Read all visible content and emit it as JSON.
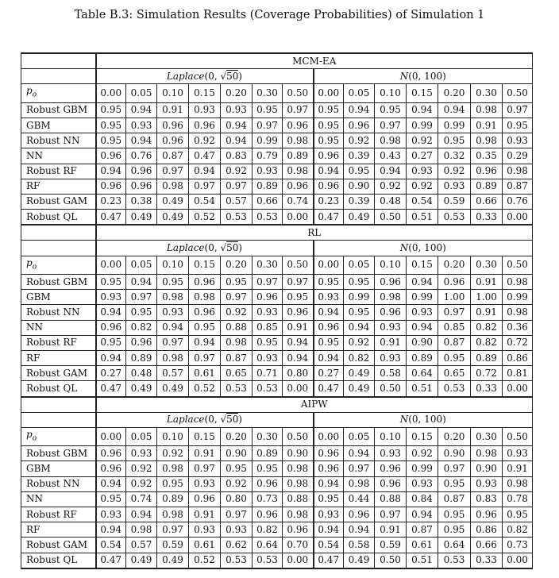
{
  "caption": "Table B.3: Simulation Results (Coverage Probabilities) of Simulation 1",
  "distributions": [
    {
      "name": "Laplace",
      "args_prefix": "(0, ",
      "sqrt_arg": "50",
      "suffix": ")"
    },
    {
      "name": "N",
      "args_prefix": "(0, 100)",
      "sqrt_arg": "",
      "suffix": ""
    }
  ],
  "p_label": "p",
  "p_sub": "o",
  "p_values": [
    "0.00",
    "0.05",
    "0.10",
    "0.15",
    "0.20",
    "0.30",
    "0.50"
  ],
  "blocks": [
    {
      "method": "MCM-EA",
      "rows": [
        {
          "label": "Robust GBM",
          "values": [
            "0.95",
            "0.94",
            "0.91",
            "0.93",
            "0.93",
            "0.95",
            "0.97",
            "0.95",
            "0.94",
            "0.95",
            "0.94",
            "0.94",
            "0.98",
            "0.97"
          ]
        },
        {
          "label": "GBM",
          "values": [
            "0.95",
            "0.93",
            "0.96",
            "0.96",
            "0.94",
            "0.97",
            "0.96",
            "0.95",
            "0.96",
            "0.97",
            "0.99",
            "0.99",
            "0.91",
            "0.95"
          ]
        },
        {
          "label": "Robust NN",
          "values": [
            "0.95",
            "0.94",
            "0.96",
            "0.92",
            "0.94",
            "0.99",
            "0.98",
            "0.95",
            "0.92",
            "0.98",
            "0.92",
            "0.95",
            "0.98",
            "0.93"
          ]
        },
        {
          "label": "NN",
          "values": [
            "0.96",
            "0.76",
            "0.87",
            "0.47",
            "0.83",
            "0.79",
            "0.89",
            "0.96",
            "0.39",
            "0.43",
            "0.27",
            "0.32",
            "0.35",
            "0.29"
          ]
        },
        {
          "label": "Robust RF",
          "values": [
            "0.94",
            "0.96",
            "0.97",
            "0.94",
            "0.92",
            "0.93",
            "0.98",
            "0.94",
            "0.95",
            "0.94",
            "0.93",
            "0.92",
            "0.96",
            "0.98"
          ]
        },
        {
          "label": "RF",
          "values": [
            "0.96",
            "0.96",
            "0.98",
            "0.97",
            "0.97",
            "0.89",
            "0.96",
            "0.96",
            "0.90",
            "0.92",
            "0.92",
            "0.93",
            "0.89",
            "0.87"
          ]
        },
        {
          "label": "Robust GAM",
          "values": [
            "0.23",
            "0.38",
            "0.49",
            "0.54",
            "0.57",
            "0.66",
            "0.74",
            "0.23",
            "0.39",
            "0.48",
            "0.54",
            "0.59",
            "0.66",
            "0.76"
          ]
        },
        {
          "label": "Robust QL",
          "values": [
            "0.47",
            "0.49",
            "0.49",
            "0.52",
            "0.53",
            "0.53",
            "0.00",
            "0.47",
            "0.49",
            "0.50",
            "0.51",
            "0.53",
            "0.33",
            "0.00"
          ]
        }
      ]
    },
    {
      "method": "RL",
      "rows": [
        {
          "label": "Robust GBM",
          "values": [
            "0.95",
            "0.94",
            "0.95",
            "0.96",
            "0.95",
            "0.97",
            "0.97",
            "0.95",
            "0.95",
            "0.96",
            "0.94",
            "0.96",
            "0.91",
            "0.98"
          ]
        },
        {
          "label": "GBM",
          "values": [
            "0.93",
            "0.97",
            "0.98",
            "0.98",
            "0.97",
            "0.96",
            "0.95",
            "0.93",
            "0.99",
            "0.98",
            "0.99",
            "1.00",
            "1.00",
            "0.99"
          ]
        },
        {
          "label": "Robust NN",
          "values": [
            "0.94",
            "0.95",
            "0.93",
            "0.96",
            "0.92",
            "0.93",
            "0.96",
            "0.94",
            "0.95",
            "0.96",
            "0.93",
            "0.97",
            "0.91",
            "0.98"
          ]
        },
        {
          "label": "NN",
          "values": [
            "0.96",
            "0.82",
            "0.94",
            "0.95",
            "0.88",
            "0.85",
            "0.91",
            "0.96",
            "0.94",
            "0.93",
            "0.94",
            "0.85",
            "0.82",
            "0.36"
          ]
        },
        {
          "label": "Robust RF",
          "values": [
            "0.95",
            "0.96",
            "0.97",
            "0.94",
            "0.98",
            "0.95",
            "0.94",
            "0.95",
            "0.92",
            "0.91",
            "0.90",
            "0.87",
            "0.82",
            "0.72"
          ]
        },
        {
          "label": "RF",
          "values": [
            "0.94",
            "0.89",
            "0.98",
            "0.97",
            "0.87",
            "0.93",
            "0.94",
            "0.94",
            "0.82",
            "0.93",
            "0.89",
            "0.95",
            "0.89",
            "0.86"
          ]
        },
        {
          "label": "Robust GAM",
          "values": [
            "0.27",
            "0.48",
            "0.57",
            "0.61",
            "0.65",
            "0.71",
            "0.80",
            "0.27",
            "0.49",
            "0.58",
            "0.64",
            "0.65",
            "0.72",
            "0.81"
          ]
        },
        {
          "label": "Robust QL",
          "values": [
            "0.47",
            "0.49",
            "0.49",
            "0.52",
            "0.53",
            "0.53",
            "0.00",
            "0.47",
            "0.49",
            "0.50",
            "0.51",
            "0.53",
            "0.33",
            "0.00"
          ]
        }
      ]
    },
    {
      "method": "AIPW",
      "rows": [
        {
          "label": "Robust GBM",
          "values": [
            "0.96",
            "0.93",
            "0.92",
            "0.91",
            "0.90",
            "0.89",
            "0.90",
            "0.96",
            "0.94",
            "0.93",
            "0.92",
            "0.90",
            "0.98",
            "0.93"
          ]
        },
        {
          "label": "GBM",
          "values": [
            "0.96",
            "0.92",
            "0.98",
            "0.97",
            "0.95",
            "0.95",
            "0.98",
            "0.96",
            "0.97",
            "0.96",
            "0.99",
            "0.97",
            "0.90",
            "0.91"
          ]
        },
        {
          "label": "Robust NN",
          "values": [
            "0.94",
            "0.92",
            "0.95",
            "0.93",
            "0.92",
            "0.96",
            "0.98",
            "0.94",
            "0.98",
            "0.96",
            "0.93",
            "0.95",
            "0.93",
            "0.98"
          ]
        },
        {
          "label": "NN",
          "values": [
            "0.95",
            "0.74",
            "0.89",
            "0.96",
            "0.80",
            "0.73",
            "0.88",
            "0.95",
            "0.44",
            "0.88",
            "0.84",
            "0.87",
            "0.83",
            "0.78"
          ]
        },
        {
          "label": "Robust RF",
          "values": [
            "0.93",
            "0.94",
            "0.98",
            "0.91",
            "0.97",
            "0.96",
            "0.98",
            "0.93",
            "0.96",
            "0.97",
            "0.94",
            "0.95",
            "0.96",
            "0.95"
          ]
        },
        {
          "label": "RF",
          "values": [
            "0.94",
            "0.98",
            "0.97",
            "0.93",
            "0.93",
            "0.82",
            "0.96",
            "0.94",
            "0.94",
            "0.91",
            "0.87",
            "0.95",
            "0.86",
            "0.82"
          ]
        },
        {
          "label": "Robust GAM",
          "values": [
            "0.54",
            "0.57",
            "0.59",
            "0.61",
            "0.62",
            "0.64",
            "0.70",
            "0.54",
            "0.58",
            "0.59",
            "0.61",
            "0.64",
            "0.66",
            "0.73"
          ]
        },
        {
          "label": "Robust QL",
          "values": [
            "0.47",
            "0.49",
            "0.49",
            "0.52",
            "0.53",
            "0.53",
            "0.00",
            "0.47",
            "0.49",
            "0.50",
            "0.51",
            "0.53",
            "0.33",
            "0.00"
          ]
        }
      ]
    }
  ]
}
